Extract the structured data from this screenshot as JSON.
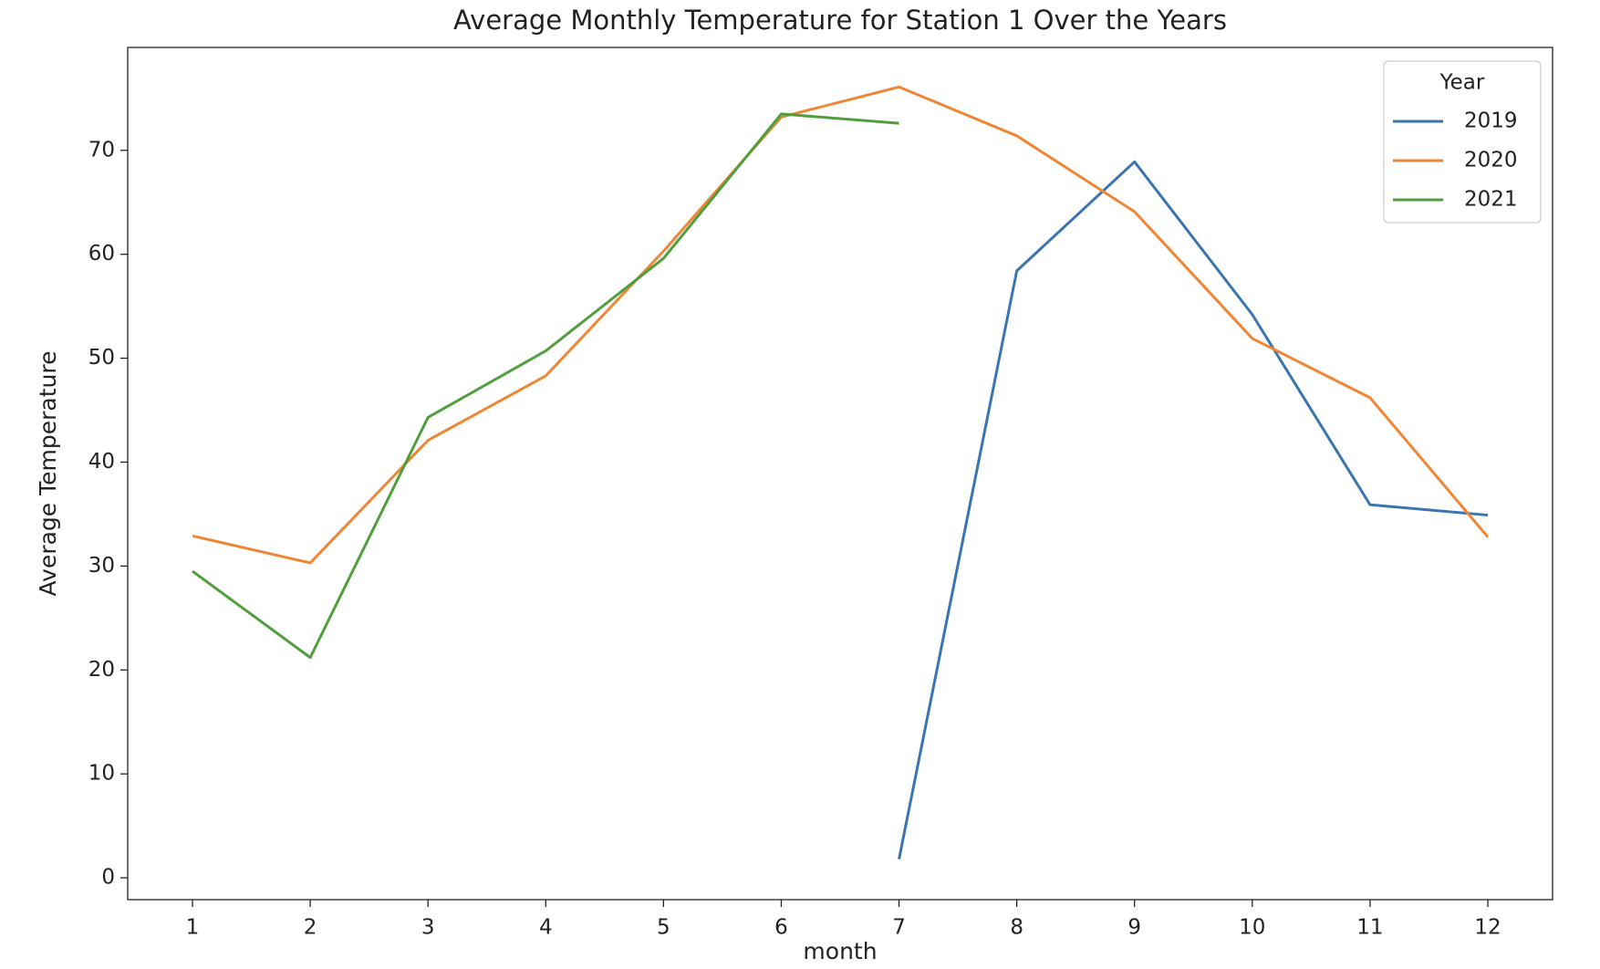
{
  "chart_data": {
    "type": "line",
    "title": "Average Monthly Temperature for Station 1 Over the Years",
    "x_label": "month",
    "y_label": "Average Temperature",
    "x": [
      1,
      2,
      3,
      4,
      5,
      6,
      7,
      8,
      9,
      10,
      11,
      12
    ],
    "series": [
      {
        "name": "2019",
        "color": "#3a75af",
        "values": [
          null,
          null,
          null,
          null,
          null,
          null,
          1.8,
          58.4,
          68.9,
          54.2,
          35.9,
          34.9
        ]
      },
      {
        "name": "2020",
        "color": "#ef8636",
        "values": [
          32.9,
          30.3,
          42.1,
          48.3,
          60.3,
          73.2,
          76.1,
          71.4,
          64.1,
          51.9,
          46.2,
          32.8
        ]
      },
      {
        "name": "2021",
        "color": "#519e3e",
        "values": [
          29.5,
          21.2,
          44.3,
          50.7,
          59.6,
          73.5,
          72.6,
          null,
          null,
          null,
          null,
          null
        ]
      }
    ],
    "legend_title": "Year",
    "legend_position": "upper right",
    "xlim": [
      0.45,
      12.55
    ],
    "xticks": [
      1,
      2,
      3,
      4,
      5,
      6,
      7,
      8,
      9,
      10,
      11,
      12
    ],
    "ylim": [
      -2.1,
      79.9
    ],
    "yticks": [
      0,
      10,
      20,
      30,
      40,
      50,
      60,
      70
    ],
    "grid": false
  }
}
